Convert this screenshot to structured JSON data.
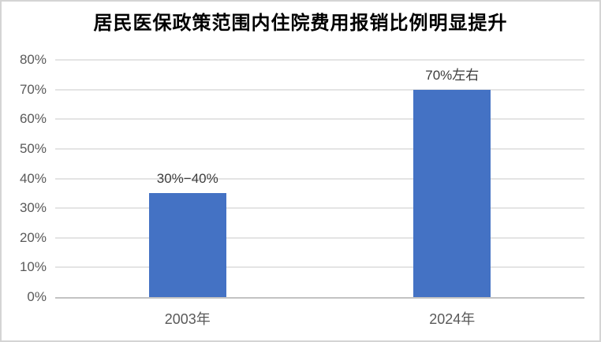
{
  "title": "居民医保政策范围内住院费用报销比例明显提升",
  "colors": {
    "bar": "#4472C4",
    "gridline": "#E4E4E4",
    "axis_line": "#C3C3C3",
    "axis_label": "#595959",
    "data_label": "#3D3D3D",
    "title": "#000000",
    "border": "#D4D4D4",
    "background": "#FFFFFF"
  },
  "chart_data": {
    "type": "bar",
    "title": "居民医保政策范围内住院费用报销比例明显提升",
    "categories": [
      "2003年",
      "2024年"
    ],
    "values": [
      35,
      70
    ],
    "data_labels": [
      "30%−40%",
      "70%左右"
    ],
    "xlabel": "",
    "ylabel": "",
    "ylim": [
      0,
      80
    ],
    "yticks": [
      0,
      10,
      20,
      30,
      40,
      50,
      60,
      70,
      80
    ],
    "ytick_labels": [
      "0%",
      "10%",
      "20%",
      "30%",
      "40%",
      "50%",
      "60%",
      "70%",
      "80%"
    ],
    "grid": true,
    "legend": false,
    "bar_color": "#4472C4"
  }
}
